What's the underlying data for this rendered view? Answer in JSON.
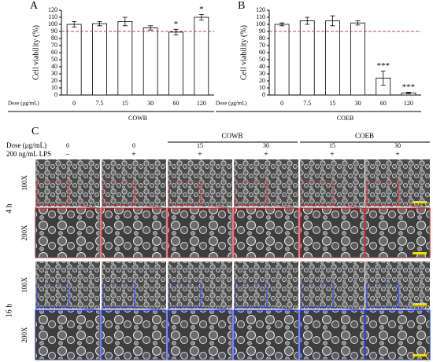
{
  "chart_data": [
    {
      "type": "bar",
      "panel": "A",
      "ylabel": "Cell viability (%)",
      "xlabel": "Dose (μg/mL)",
      "group": "COWB",
      "categories": [
        "0",
        "7.5",
        "15",
        "30",
        "60",
        "120"
      ],
      "values": [
        100,
        101,
        104,
        95,
        89,
        110
      ],
      "errors": [
        4,
        3,
        6,
        3,
        4,
        4
      ],
      "annotations": [
        {
          "category": "60",
          "text": "*"
        },
        {
          "category": "120",
          "text": "*"
        }
      ],
      "color": "#ffffff",
      "ref_line": 90,
      "ref_color": "#e0383b",
      "ylim": [
        0,
        120
      ],
      "yticks": [
        0,
        10,
        20,
        30,
        40,
        50,
        60,
        70,
        80,
        90,
        100,
        110,
        120
      ]
    },
    {
      "type": "bar",
      "panel": "B",
      "ylabel": "Cell viability (%)",
      "xlabel": "Dose (μg/mL)",
      "group": "COEB",
      "categories": [
        "0",
        "7.5",
        "15",
        "30",
        "60",
        "120"
      ],
      "values": [
        100,
        105,
        105,
        102,
        24,
        3
      ],
      "errors": [
        2,
        5,
        7,
        3,
        10,
        1
      ],
      "annotations": [
        {
          "category": "60",
          "text": "***"
        },
        {
          "category": "120",
          "text": "***"
        }
      ],
      "color": "#ffffff",
      "ref_line": 90,
      "ref_color": "#e0383b",
      "ylim": [
        0,
        120
      ],
      "yticks": [
        0,
        10,
        20,
        30,
        40,
        50,
        60,
        70,
        80,
        90,
        100,
        110,
        120
      ]
    }
  ],
  "panel_c": {
    "label": "C",
    "dose_label": "Dose (μg/mL)",
    "lps_label": "200 ng/mL LPS",
    "columns": [
      {
        "dose": "0",
        "lps": "−"
      },
      {
        "dose": "0",
        "lps": "+"
      },
      {
        "dose": "15",
        "lps": "+"
      },
      {
        "dose": "30",
        "lps": "+"
      },
      {
        "dose": "15",
        "lps": "+"
      },
      {
        "dose": "30",
        "lps": "+"
      }
    ],
    "groups": [
      "COWB",
      "COEB"
    ],
    "rows": [
      {
        "time": "4 h",
        "magnifications": [
          "100X",
          "200X"
        ]
      },
      {
        "time": "16 h",
        "magnifications": [
          "100X",
          "200X"
        ]
      }
    ]
  }
}
